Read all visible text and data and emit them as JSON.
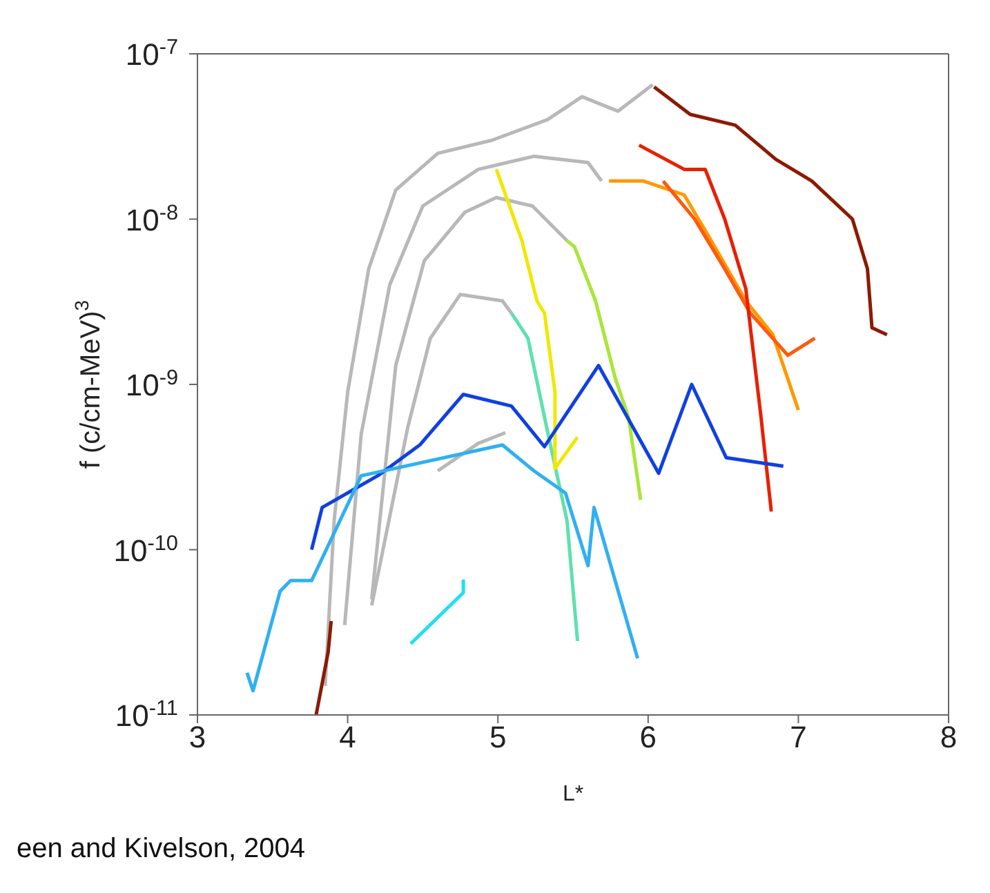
{
  "chart_data": {
    "type": "line",
    "xlabel": "L*",
    "ylabel": "f (c/cm-MeV)$^{3}$",
    "log": "y",
    "marker": "none",
    "line_style": "solid",
    "xlim": [
      3,
      8
    ],
    "xticks": [
      3,
      4,
      5,
      6,
      7,
      8
    ],
    "ylim": [
      1e-11,
      1e-07
    ],
    "yticks": [
      {
        "value": 1e-11,
        "label": "10$^{-11}$"
      },
      {
        "value": 1e-10,
        "label": "10$^{-10}$"
      },
      {
        "value": 1e-09,
        "label": "10$^{-9}$"
      },
      {
        "value": 1e-08,
        "label": "10$^{-8}$"
      },
      {
        "value": 1e-07,
        "label": "10$^{-7}$"
      }
    ],
    "annotations": [
      "een and Kivelson, 2004"
    ],
    "series": [
      {
        "color": "#b8b8b8",
        "x": [
          3.85,
          3.91,
          4.0,
          4.14,
          4.32,
          4.6,
          4.96,
          5.33,
          5.56,
          5.8,
          6.03
        ],
        "values": [
          1.5e-11,
          1.5e-10,
          9e-10,
          5e-09,
          1.5e-08,
          2.5e-08,
          3e-08,
          4e-08,
          5.5e-08,
          4.5e-08,
          6.5e-08
        ]
      },
      {
        "color": "#b8b8b8",
        "x": [
          3.98,
          4.09,
          4.28,
          4.5,
          4.87,
          5.24,
          5.6,
          5.69
        ],
        "values": [
          3.5e-11,
          5e-10,
          4e-09,
          1.2e-08,
          2e-08,
          2.4e-08,
          2.2e-08,
          1.7e-08
        ]
      },
      {
        "color": "#b8b8b8",
        "x": [
          4.16,
          4.32,
          4.51,
          4.78,
          4.99,
          5.23,
          5.46
        ],
        "values": [
          5e-11,
          1.3e-09,
          5.6e-09,
          1.1e-08,
          1.35e-08,
          1.2e-08,
          7.4e-09
        ]
      },
      {
        "color": "#b8b8b8",
        "x": [
          4.16,
          4.4,
          4.55,
          4.75,
          5.03,
          5.09
        ],
        "values": [
          4.6e-11,
          5.5e-10,
          1.9e-09,
          3.5e-09,
          3.2e-09,
          2.7e-09
        ]
      },
      {
        "color": "#b8b8b8",
        "x": [
          4.6,
          4.87,
          5.05
        ],
        "values": [
          3e-10,
          4.4e-10,
          5.1e-10
        ]
      },
      {
        "color": "#a8e63a",
        "x": [
          5.46,
          5.51,
          5.65,
          5.78,
          5.87,
          5.95
        ],
        "values": [
          7.4e-09,
          6.8e-09,
          3.2e-09,
          1.1e-09,
          6.3e-10,
          2e-10
        ]
      },
      {
        "color": "#5fe0b0",
        "x": [
          5.09,
          5.2,
          5.33,
          5.46,
          5.53
        ],
        "values": [
          2.7e-09,
          1.9e-09,
          5.2e-10,
          1.5e-10,
          2.8e-11
        ]
      },
      {
        "color": "#f0e800",
        "x": [
          4.99,
          5.16,
          5.26,
          5.31,
          5.38,
          5.38,
          5.53
        ],
        "values": [
          2e-08,
          7.4e-09,
          3.2e-09,
          2.7e-09,
          9e-10,
          3.1e-10,
          4.8e-10
        ]
      },
      {
        "color": "#ff9900",
        "x": [
          5.74,
          5.97,
          6.24,
          6.42,
          6.65,
          6.83,
          7.0
        ],
        "values": [
          1.7e-08,
          1.7e-08,
          1.4e-08,
          7.4e-09,
          3.2e-09,
          2e-09,
          7e-10
        ]
      },
      {
        "color": "#ff5a10",
        "x": [
          6.1,
          6.31,
          6.51,
          6.68,
          6.93,
          7.11
        ],
        "values": [
          1.7e-08,
          1e-08,
          5e-09,
          2.7e-09,
          1.5e-09,
          1.9e-09
        ]
      },
      {
        "color": "#e82000",
        "x": [
          5.94,
          6.24,
          6.38,
          6.51,
          6.65,
          6.75,
          6.82
        ],
        "values": [
          2.8e-08,
          2e-08,
          2e-08,
          1e-08,
          3.8e-09,
          6.5e-10,
          1.7e-10
        ]
      },
      {
        "color": "#8b1a00",
        "x": [
          6.04,
          6.28,
          6.58,
          6.85,
          7.09,
          7.36,
          7.46,
          7.49,
          7.59
        ],
        "values": [
          6.3e-08,
          4.3e-08,
          3.7e-08,
          2.3e-08,
          1.7e-08,
          1e-08,
          5e-09,
          2.2e-09,
          2e-09
        ]
      },
      {
        "color": "#8b1a00",
        "x": [
          3.79,
          3.87,
          3.89
        ],
        "values": [
          1e-11,
          2.4e-11,
          3.7e-11
        ]
      },
      {
        "color": "#1040e0",
        "x": [
          3.76,
          3.83,
          4.2,
          4.48,
          4.77,
          5.09,
          5.31,
          5.67,
          6.07,
          6.29,
          6.52,
          6.9
        ],
        "values": [
          1e-10,
          1.8e-10,
          2.8e-10,
          4.3e-10,
          8.7e-10,
          7.4e-10,
          4.2e-10,
          1.3e-09,
          2.9e-10,
          1e-09,
          3.6e-10,
          3.2e-10
        ]
      },
      {
        "color": "#30b0f0",
        "x": [
          3.33,
          3.37,
          3.55,
          3.62,
          3.76,
          4.09,
          5.03,
          5.24,
          5.45,
          5.6,
          5.64,
          5.93
        ],
        "values": [
          1.8e-11,
          1.4e-11,
          5.6e-11,
          6.5e-11,
          6.5e-11,
          2.8e-10,
          4.3e-10,
          3e-10,
          2.2e-10,
          8e-11,
          1.8e-10,
          2.2e-11
        ]
      },
      {
        "color": "#20e0f0",
        "x": [
          4.42,
          4.77,
          4.77
        ],
        "values": [
          2.7e-11,
          5.5e-11,
          6.6e-11
        ]
      }
    ]
  }
}
